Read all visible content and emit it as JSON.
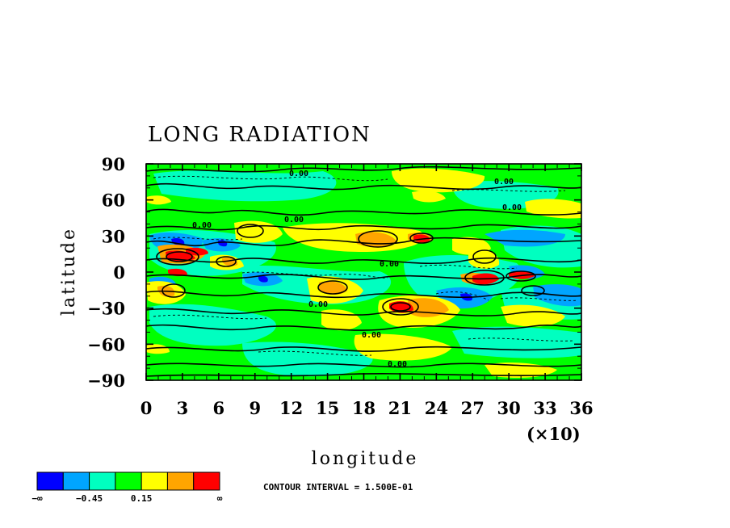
{
  "chart_data": {
    "type": "heatmap",
    "title": "LONG RADIATION",
    "xlabel": "longitude",
    "ylabel": "latitude",
    "x_multiplier_label": "(×10)",
    "xlim": [
      0,
      36
    ],
    "ylim": [
      -90,
      90
    ],
    "x_ticks": [
      "0",
      "3",
      "6",
      "9",
      "12",
      "15",
      "18",
      "21",
      "24",
      "27",
      "30",
      "33",
      "36"
    ],
    "y_ticks": [
      "90",
      "60",
      "30",
      "0",
      "−30",
      "−60",
      "−90"
    ],
    "contour_interval_text": "CONTOUR INTERVAL = 1.500E-01",
    "contour_labels": [
      "0.00",
      "0.00",
      "0.00",
      "0.00",
      "0.00",
      "0.00",
      "0.00",
      "0.00",
      "0.00"
    ],
    "colorbar": {
      "colors": [
        "#0000ff",
        "#00a5ff",
        "#00ffc0",
        "#00ff00",
        "#ffff00",
        "#ffa500",
        "#ff0000"
      ],
      "labels": [
        "−∞",
        "−0.45",
        "0.15",
        "∞"
      ]
    },
    "grid": false,
    "legend": "colorbar bottom-left"
  }
}
